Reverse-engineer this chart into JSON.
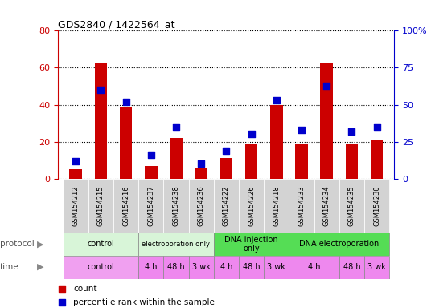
{
  "title": "GDS2840 / 1422564_at",
  "samples": [
    "GSM154212",
    "GSM154215",
    "GSM154216",
    "GSM154237",
    "GSM154238",
    "GSM154236",
    "GSM154222",
    "GSM154226",
    "GSM154218",
    "GSM154233",
    "GSM154234",
    "GSM154235",
    "GSM154230"
  ],
  "counts": [
    5,
    63,
    39,
    7,
    22,
    6,
    11,
    19,
    40,
    19,
    63,
    19,
    21
  ],
  "percentiles": [
    12,
    60,
    52,
    16,
    35,
    10,
    19,
    30,
    53,
    33,
    63,
    32,
    35
  ],
  "ylim_left": [
    0,
    80
  ],
  "ylim_right": [
    0,
    100
  ],
  "yticks_left": [
    0,
    20,
    40,
    60,
    80
  ],
  "yticks_right": [
    0,
    25,
    50,
    75,
    100
  ],
  "bar_color": "#cc0000",
  "dot_color": "#0000cc",
  "prot_groups": [
    {
      "label": "control",
      "start": 0,
      "end": 3,
      "color": "#d8f5d8"
    },
    {
      "label": "electroporation only",
      "start": 3,
      "end": 6,
      "color": "#d8f5d8",
      "fontsize": 6
    },
    {
      "label": "DNA injection\nonly",
      "start": 6,
      "end": 9,
      "color": "#55dd55"
    },
    {
      "label": "DNA electroporation",
      "start": 9,
      "end": 13,
      "color": "#55dd55"
    }
  ],
  "time_groups": [
    {
      "label": "control",
      "start": 0,
      "end": 3,
      "color": "#f0a0f0"
    },
    {
      "label": "4 h",
      "start": 3,
      "end": 4,
      "color": "#ee88ee"
    },
    {
      "label": "48 h",
      "start": 4,
      "end": 5,
      "color": "#ee88ee"
    },
    {
      "label": "3 wk",
      "start": 5,
      "end": 6,
      "color": "#ee88ee"
    },
    {
      "label": "4 h",
      "start": 6,
      "end": 7,
      "color": "#ee88ee"
    },
    {
      "label": "48 h",
      "start": 7,
      "end": 8,
      "color": "#ee88ee"
    },
    {
      "label": "3 wk",
      "start": 8,
      "end": 9,
      "color": "#ee88ee"
    },
    {
      "label": "4 h",
      "start": 9,
      "end": 11,
      "color": "#ee88ee"
    },
    {
      "label": "48 h",
      "start": 11,
      "end": 12,
      "color": "#ee88ee"
    },
    {
      "label": "3 wk",
      "start": 12,
      "end": 13,
      "color": "#ee88ee"
    }
  ],
  "background_color": "#ffffff",
  "tick_color_left": "#cc0000",
  "tick_color_right": "#0000cc",
  "sample_bg": "#d3d3d3",
  "legend": [
    {
      "color": "#cc0000",
      "label": "count"
    },
    {
      "color": "#0000cc",
      "label": "percentile rank within the sample"
    }
  ]
}
